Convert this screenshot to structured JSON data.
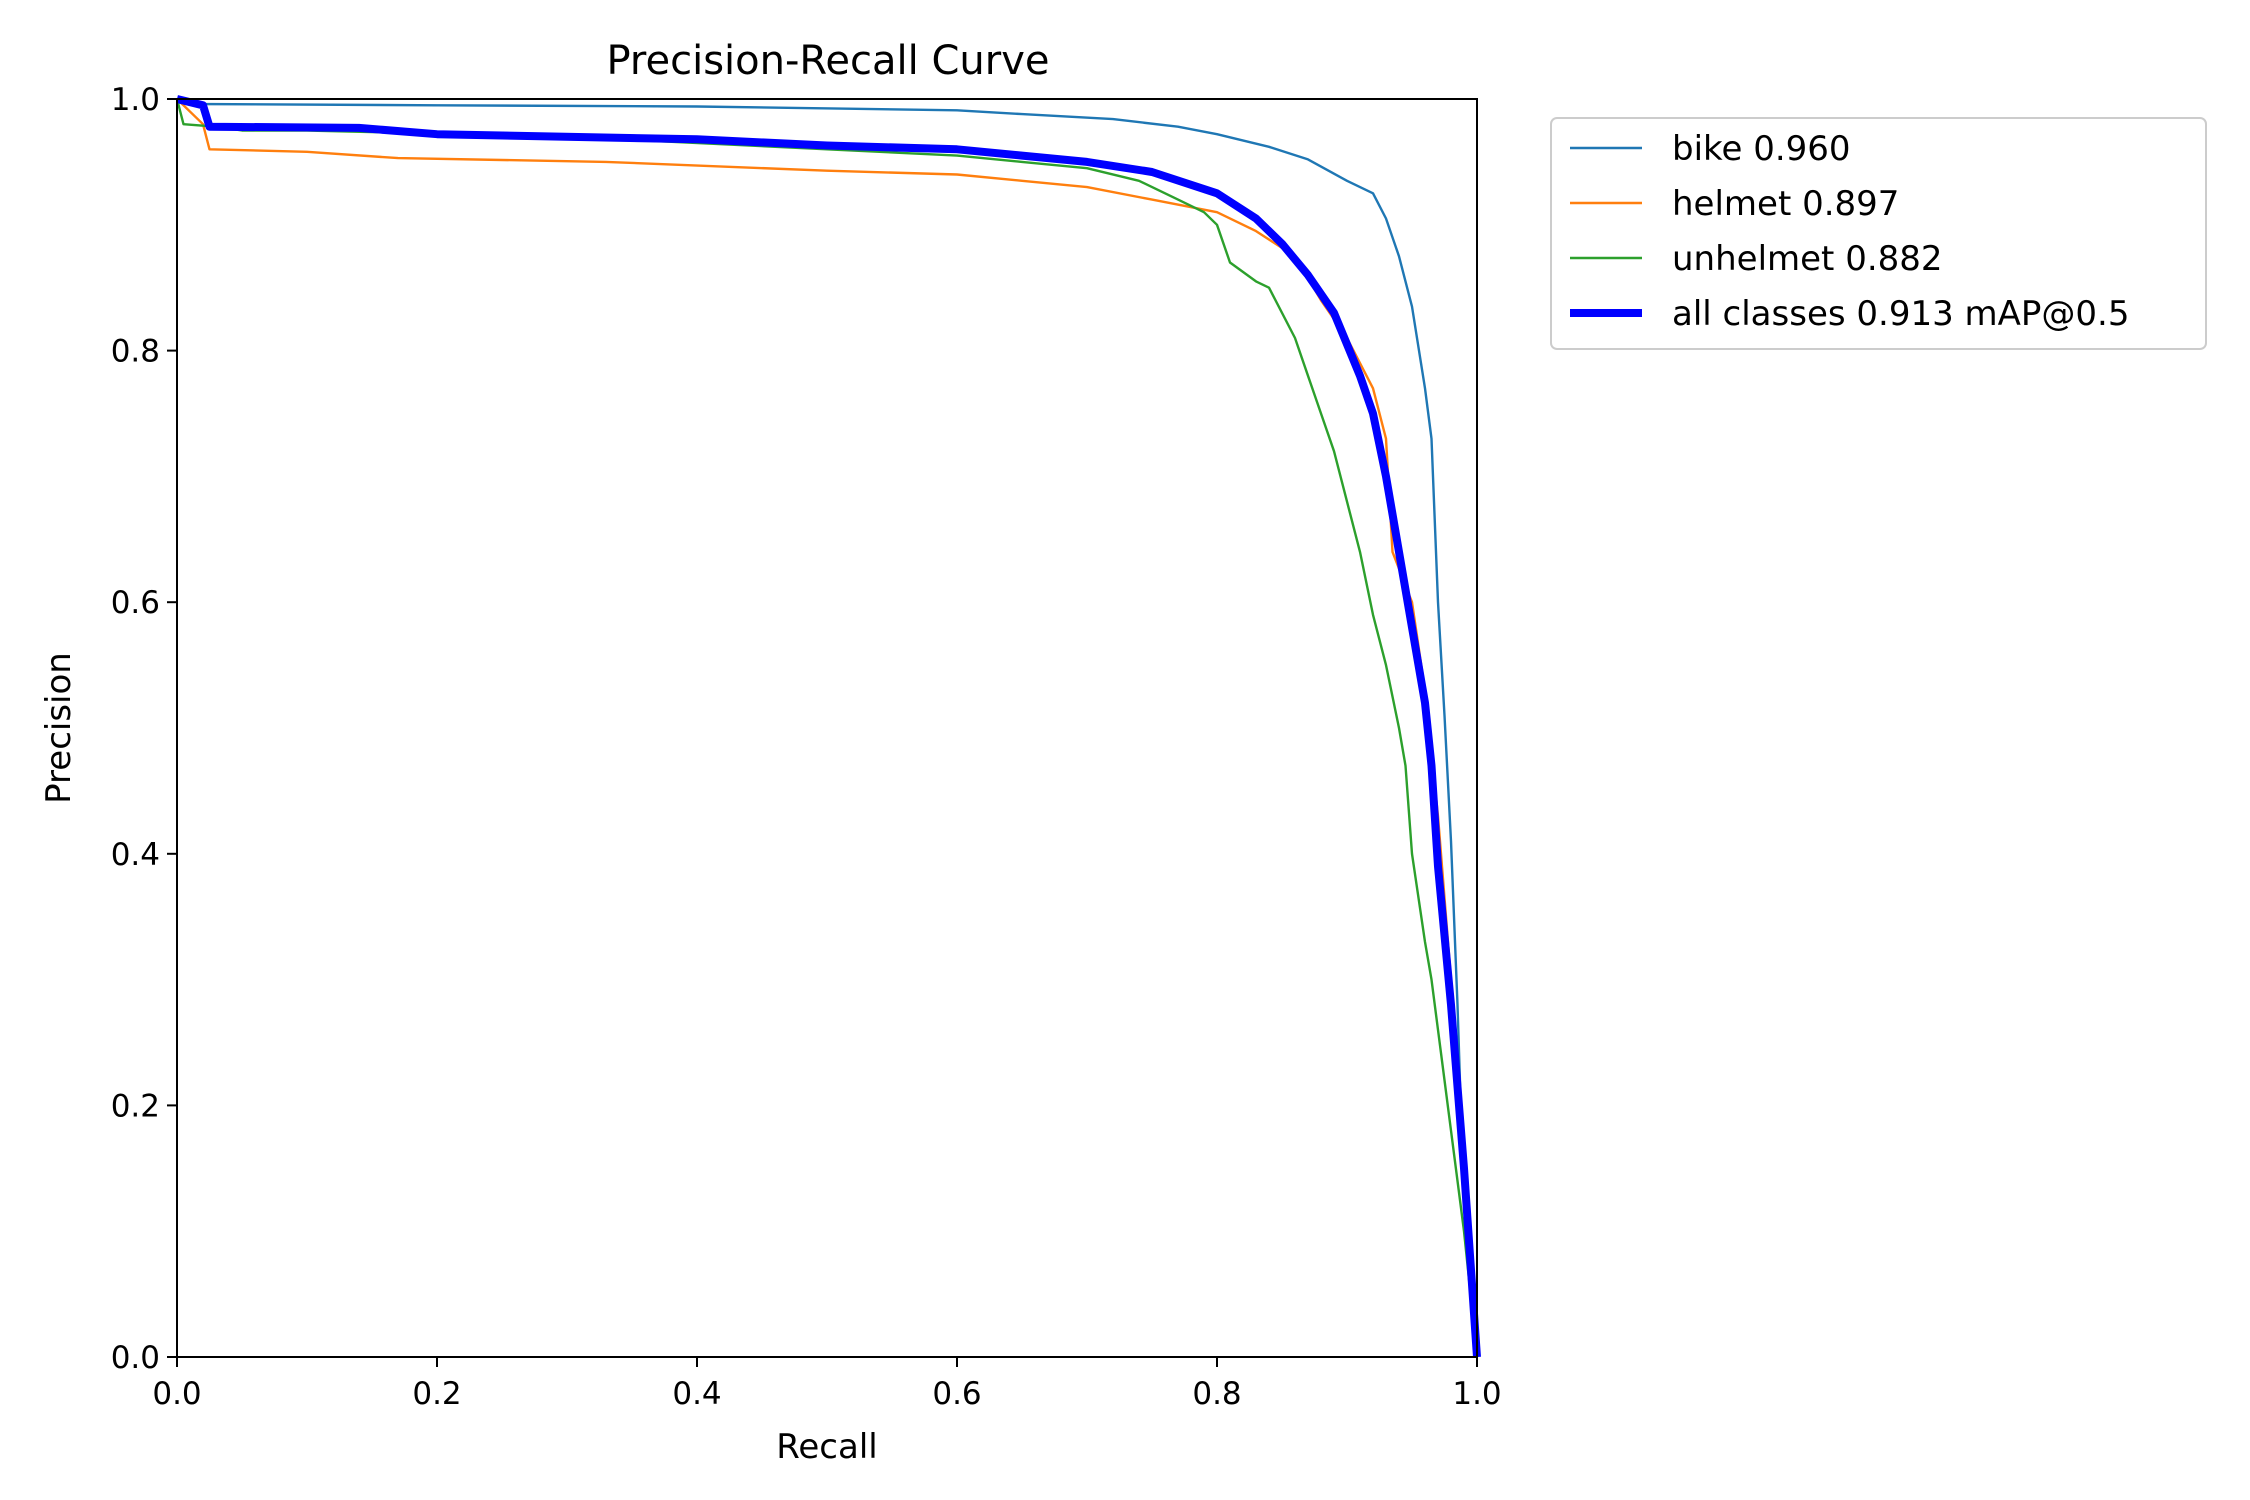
{
  "chart_data": {
    "type": "line",
    "title": "Precision-Recall Curve",
    "xlabel": "Recall",
    "ylabel": "Precision",
    "xlim": [
      0,
      1
    ],
    "ylim": [
      0,
      1
    ],
    "xticks": [
      "0.0",
      "0.2",
      "0.4",
      "0.6",
      "0.8",
      "1.0"
    ],
    "yticks": [
      "0.0",
      "0.2",
      "0.4",
      "0.6",
      "0.8",
      "1.0"
    ],
    "grid": false,
    "legend_position": "outside-top-right",
    "series": [
      {
        "name": "bike 0.960",
        "color": "#1f77b4",
        "emphasis": "normal",
        "x": [
          0.0,
          0.01,
          0.2,
          0.4,
          0.6,
          0.65,
          0.72,
          0.77,
          0.8,
          0.84,
          0.87,
          0.9,
          0.92,
          0.93,
          0.94,
          0.95,
          0.96,
          0.965,
          0.97,
          0.975,
          0.98,
          0.985,
          0.99,
          1.0
        ],
        "y": [
          1.0,
          0.996,
          0.995,
          0.994,
          0.991,
          0.988,
          0.984,
          0.978,
          0.972,
          0.962,
          0.952,
          0.935,
          0.925,
          0.905,
          0.875,
          0.835,
          0.77,
          0.73,
          0.6,
          0.51,
          0.41,
          0.28,
          0.12,
          0.0
        ]
      },
      {
        "name": "helmet 0.897",
        "color": "#ff7f0e",
        "emphasis": "normal",
        "x": [
          0.0,
          0.02,
          0.025,
          0.1,
          0.17,
          0.33,
          0.5,
          0.6,
          0.65,
          0.7,
          0.75,
          0.8,
          0.83,
          0.86,
          0.88,
          0.9,
          0.92,
          0.93,
          0.935,
          0.95,
          0.96,
          0.97,
          0.98,
          0.99,
          1.0
        ],
        "y": [
          1.0,
          0.98,
          0.96,
          0.958,
          0.953,
          0.95,
          0.943,
          0.94,
          0.935,
          0.93,
          0.92,
          0.91,
          0.895,
          0.875,
          0.84,
          0.81,
          0.77,
          0.73,
          0.64,
          0.6,
          0.53,
          0.43,
          0.3,
          0.15,
          0.0
        ]
      },
      {
        "name": "unhelmet 0.882",
        "color": "#2ca02c",
        "emphasis": "normal",
        "x": [
          0.0,
          0.005,
          0.03,
          0.05,
          0.1,
          0.3,
          0.5,
          0.6,
          0.65,
          0.7,
          0.74,
          0.77,
          0.79,
          0.8,
          0.81,
          0.83,
          0.84,
          0.86,
          0.87,
          0.88,
          0.89,
          0.9,
          0.91,
          0.92,
          0.93,
          0.94,
          0.945,
          0.95,
          0.96,
          0.965,
          0.97,
          0.975,
          0.98,
          0.99,
          1.0
        ],
        "y": [
          1.0,
          0.98,
          0.978,
          0.975,
          0.975,
          0.97,
          0.96,
          0.955,
          0.95,
          0.945,
          0.935,
          0.92,
          0.91,
          0.9,
          0.87,
          0.855,
          0.85,
          0.81,
          0.78,
          0.75,
          0.72,
          0.68,
          0.64,
          0.59,
          0.55,
          0.5,
          0.47,
          0.4,
          0.33,
          0.3,
          0.26,
          0.22,
          0.18,
          0.1,
          0.0
        ]
      },
      {
        "name": "all classes 0.913 mAP@0.5",
        "color": "#0000ff",
        "emphasis": "bold",
        "x": [
          0.0,
          0.02,
          0.025,
          0.14,
          0.2,
          0.4,
          0.5,
          0.6,
          0.65,
          0.7,
          0.75,
          0.8,
          0.83,
          0.85,
          0.87,
          0.89,
          0.9,
          0.91,
          0.92,
          0.93,
          0.94,
          0.95,
          0.96,
          0.965,
          0.97,
          0.98,
          0.99,
          1.0
        ],
        "y": [
          1.0,
          0.995,
          0.978,
          0.977,
          0.972,
          0.968,
          0.963,
          0.96,
          0.955,
          0.95,
          0.942,
          0.925,
          0.905,
          0.885,
          0.86,
          0.83,
          0.805,
          0.78,
          0.75,
          0.7,
          0.64,
          0.58,
          0.52,
          0.47,
          0.39,
          0.28,
          0.15,
          0.0
        ]
      }
    ]
  }
}
